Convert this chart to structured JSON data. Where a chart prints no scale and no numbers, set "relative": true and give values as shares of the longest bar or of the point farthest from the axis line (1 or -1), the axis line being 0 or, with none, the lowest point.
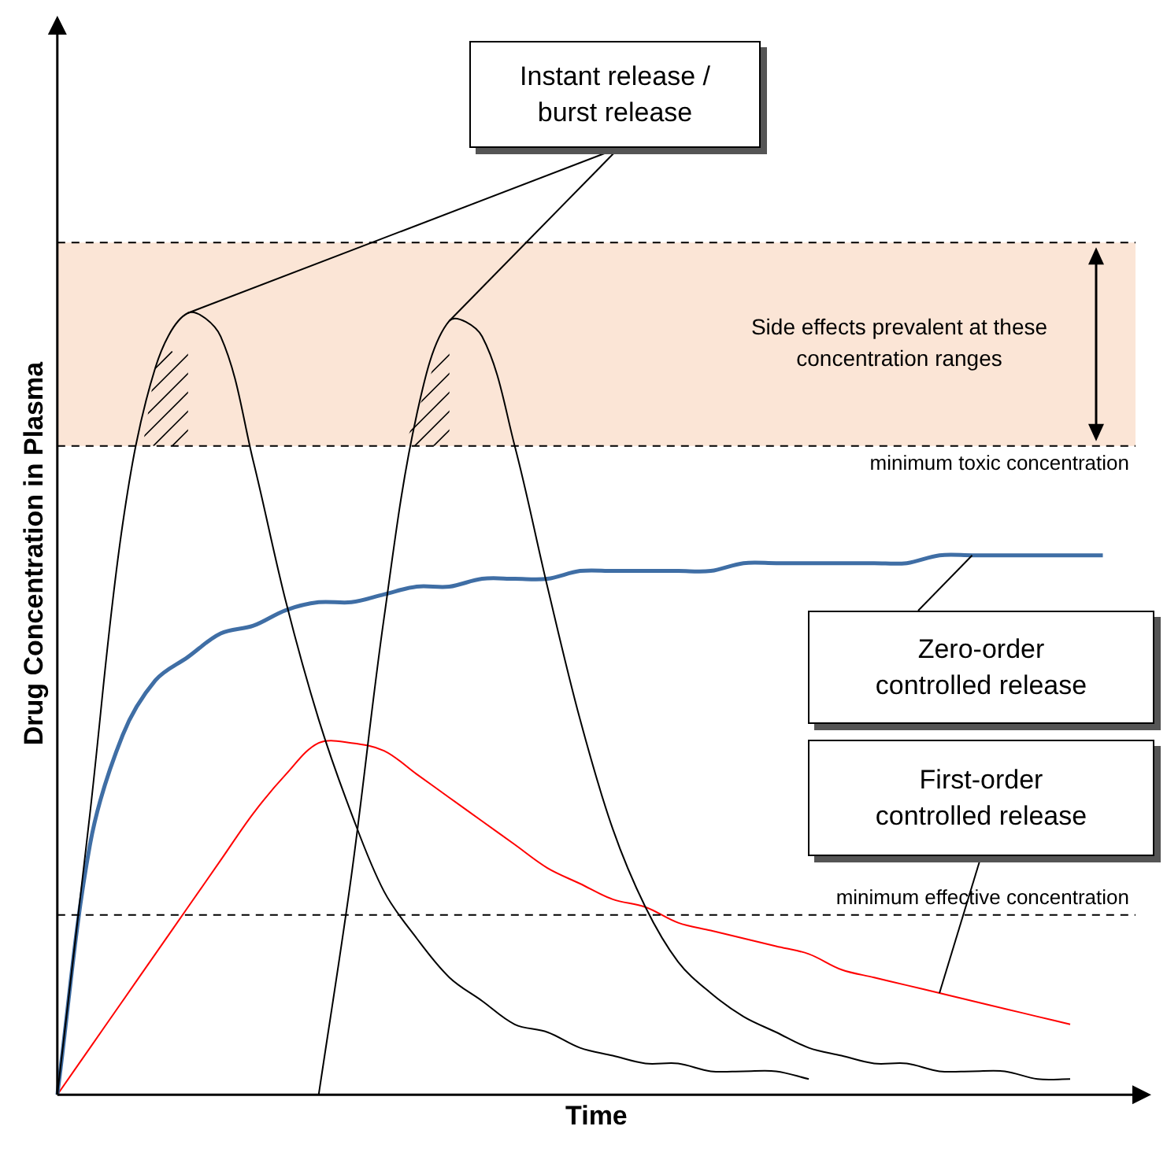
{
  "chart_data": {
    "type": "line",
    "relative": true,
    "xlabel": "Time",
    "ylabel": "Drug Concentration in Plasma",
    "categories": [
      null,
      null,
      null,
      null,
      null,
      null,
      null,
      null,
      null,
      null,
      null,
      null,
      null,
      null,
      null,
      null,
      null,
      null,
      null,
      null,
      null,
      null,
      null,
      null,
      null,
      null,
      null,
      null,
      null,
      null,
      null,
      null,
      null,
      null
    ],
    "series": [
      {
        "color": "#000000",
        "values": [
          0,
          0.36,
          0.73,
          0.93,
          1.0,
          0.97,
          0.81,
          0.63,
          0.48,
          0.36,
          0.26,
          0.2,
          0.15,
          0.12,
          0.09,
          0.08,
          0.06,
          0.05,
          0.04,
          0.04,
          0.03,
          0.03,
          0.03,
          0.02,
          null,
          null,
          null,
          null,
          null,
          null,
          null,
          null,
          null,
          null
        ]
      },
      {
        "color": "#000000",
        "values": [
          null,
          null,
          null,
          null,
          null,
          null,
          null,
          null,
          0,
          0.28,
          0.61,
          0.87,
          0.99,
          0.97,
          0.83,
          0.65,
          0.48,
          0.34,
          0.24,
          0.17,
          0.13,
          0.1,
          0.08,
          0.06,
          0.05,
          0.04,
          0.04,
          0.03,
          0.03,
          0.03,
          0.02,
          0.02,
          null,
          null
        ]
      },
      {
        "color": "#3f6ea5",
        "values": [
          0,
          0.32,
          0.46,
          0.53,
          0.56,
          0.59,
          0.6,
          0.62,
          0.63,
          0.63,
          0.64,
          0.65,
          0.65,
          0.66,
          0.66,
          0.66,
          0.67,
          0.67,
          0.67,
          0.67,
          0.67,
          0.68,
          0.68,
          0.68,
          0.68,
          0.68,
          0.68,
          0.69,
          0.69,
          0.69,
          0.69,
          0.69,
          0.69,
          null
        ]
      },
      {
        "color": "#ff0000",
        "values": [
          0,
          0.06,
          0.12,
          0.18,
          0.24,
          0.3,
          0.36,
          0.41,
          0.45,
          0.45,
          0.44,
          0.41,
          0.38,
          0.35,
          0.32,
          0.29,
          0.27,
          0.25,
          0.24,
          0.22,
          0.21,
          0.2,
          0.19,
          0.18,
          0.16,
          0.15,
          0.14,
          0.13,
          0.12,
          0.11,
          0.1,
          0.09,
          null,
          null
        ]
      }
    ],
    "annotations": [
      "Instant release / burst release",
      "Zero-order controlled release",
      "First-order controlled release"
    ],
    "ref_lines": [
      {
        "axis": "y",
        "value": 0.83,
        "label": "minimum toxic concentration",
        "line_style": "dashed"
      },
      {
        "axis": "y",
        "value": 0.23,
        "label": "minimum effective concentration",
        "line_style": "dashed"
      }
    ],
    "bands": [
      {
        "axis": "y",
        "from": 0.83,
        "to": 1.09,
        "label": "Side effects prevalent at these concentration ranges",
        "color": "#fbe5d6"
      }
    ]
  }
}
